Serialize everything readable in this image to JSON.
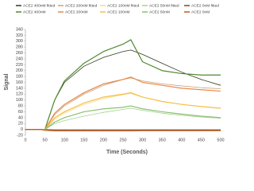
{
  "chart_data": {
    "type": "line",
    "x_label": "Time (Seconds)",
    "y_label": "Signal",
    "x": [
      0,
      40,
      50,
      75,
      100,
      150,
      200,
      250,
      270,
      300,
      350,
      400,
      450,
      500
    ],
    "series": [
      {
        "name": "ACE2 400nM fitted",
        "color": "#2f3b1a",
        "values": [
          0,
          0,
          0,
          100,
          160,
          215,
          245,
          265,
          270,
          255,
          225,
          195,
          170,
          150
        ]
      },
      {
        "name": "ACE2 200nM fitted",
        "color": "#c9a27a",
        "values": [
          0,
          0,
          0,
          50,
          80,
          120,
          150,
          170,
          175,
          165,
          155,
          148,
          142,
          138
        ]
      },
      {
        "name": "ACE2 100nM fitted",
        "color": "#f6d88a",
        "values": [
          0,
          0,
          0,
          35,
          55,
          85,
          105,
          118,
          122,
          110,
          95,
          85,
          78,
          72
        ]
      },
      {
        "name": "ACE2 50nM fitted",
        "color": "#a8d08d",
        "values": [
          0,
          0,
          0,
          20,
          30,
          45,
          58,
          68,
          72,
          65,
          55,
          48,
          42,
          38
        ]
      },
      {
        "name": "ACE2 0nM fitted",
        "color": "#7a4a2a",
        "values": [
          0,
          0,
          0,
          -2,
          -2,
          -2,
          -2,
          -2,
          -2,
          -2,
          -2,
          -2,
          -2,
          -2
        ]
      },
      {
        "name": "ACE2 400nM",
        "color": "#4e8a2e",
        "values": [
          0,
          0,
          0,
          100,
          165,
          225,
          265,
          290,
          305,
          230,
          200,
          190,
          185,
          185
        ]
      },
      {
        "name": "ACE2 200nM",
        "color": "#e8894a",
        "values": [
          0,
          0,
          0,
          55,
          85,
          125,
          155,
          170,
          178,
          160,
          150,
          140,
          135,
          130
        ]
      },
      {
        "name": "ACE2 100nM",
        "color": "#f4c040",
        "values": [
          0,
          0,
          0,
          40,
          60,
          90,
          110,
          120,
          125,
          110,
          95,
          85,
          78,
          72
        ]
      },
      {
        "name": "ACE2 50nM",
        "color": "#8cc070",
        "values": [
          0,
          0,
          0,
          25,
          40,
          60,
          70,
          75,
          80,
          70,
          60,
          52,
          45,
          40
        ]
      },
      {
        "name": "ACE2 0nM",
        "color": "#c05a1a",
        "values": [
          0,
          0,
          -3,
          -5,
          -5,
          -5,
          -5,
          -5,
          -5,
          -4,
          -4,
          -4,
          -4,
          -4
        ]
      }
    ],
    "xlim": [
      0,
      500
    ],
    "xticks": [
      0,
      50,
      100,
      150,
      200,
      250,
      300,
      350,
      400,
      450,
      500
    ],
    "ylim": [
      -20,
      340
    ],
    "yticks": [
      -20,
      0,
      20,
      40,
      60,
      80,
      100,
      120,
      140,
      160,
      180,
      200,
      220,
      240,
      260,
      280,
      300,
      320,
      340
    ],
    "grid": false,
    "legend": "top"
  }
}
